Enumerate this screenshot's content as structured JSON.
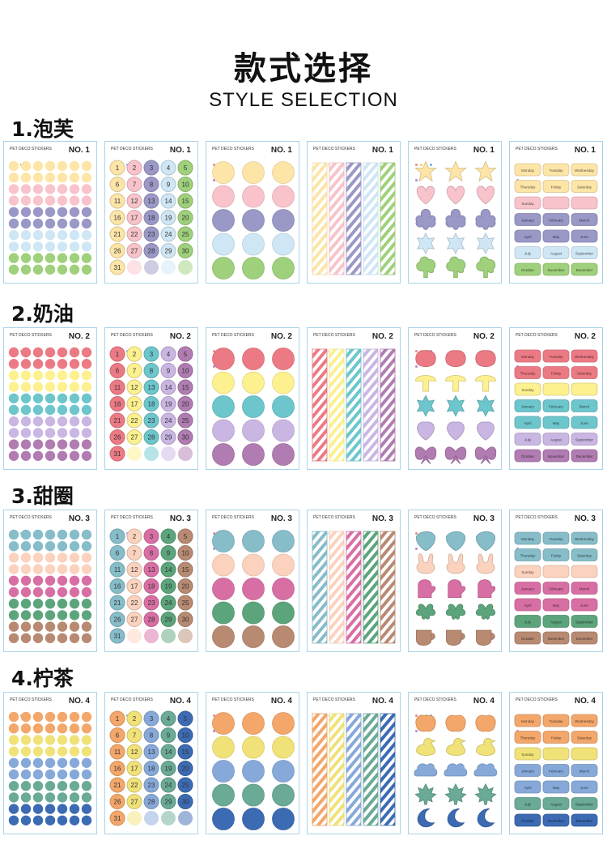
{
  "header": {
    "title_cn": "款式选择",
    "title_en": "STYLE SELECTION"
  },
  "card_brand": "PET DECO STICKERS",
  "dot_colors": [
    "#e98a8a",
    "#f2cf6a",
    "#7cc38a",
    "#7aa9d8",
    "#b28ad2"
  ],
  "tile_types": [
    "dots-grid",
    "numbers",
    "big-circles",
    "stripes",
    "shapes",
    "labels"
  ],
  "weekdays": [
    "Monday",
    "Tuesday",
    "Wednesday",
    "Thursday",
    "Friday",
    "Saturday",
    "Sunday"
  ],
  "months": [
    "January",
    "February",
    "March",
    "April",
    "May",
    "June",
    "July",
    "August",
    "September",
    "October",
    "November",
    "December"
  ],
  "sections": [
    {
      "label": "1.泡芙",
      "card_no": "NO. 1",
      "colors": [
        "#fde5a8",
        "#f8c3cb",
        "#9a98c7",
        "#cfe6f4",
        "#9fd07b"
      ],
      "shapes": [
        "star",
        "heart",
        "flower",
        "snowflake",
        "tree"
      ]
    },
    {
      "label": "2.奶油",
      "card_no": "NO. 2",
      "colors": [
        "#ec7a85",
        "#fcf08f",
        "#6cc6cc",
        "#c9b6e2",
        "#b07cb1"
      ],
      "shapes": [
        "tomato",
        "mushroom",
        "snowflake",
        "grape",
        "bow"
      ]
    },
    {
      "label": "3.甜圈",
      "card_no": "NO. 3",
      "colors": [
        "#86bdc9",
        "#fbd2bd",
        "#d86fa4",
        "#5ca57c",
        "#b88a72"
      ],
      "shapes": [
        "leaf",
        "bunny",
        "mitten",
        "clover",
        "cup"
      ]
    },
    {
      "label": "4.柠茶",
      "card_no": "NO. 4",
      "colors": [
        "#f3a76b",
        "#f0e278",
        "#87a9d9",
        "#6aaa96",
        "#3c6bb3"
      ],
      "shapes": [
        "pumpkin",
        "duck",
        "cloud",
        "maple",
        "moon"
      ]
    }
  ]
}
